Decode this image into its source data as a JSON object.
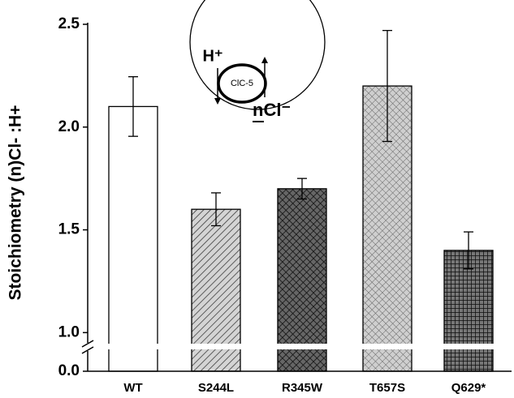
{
  "chart_data": {
    "type": "bar",
    "y_label": "Stoichiometry (n)Cl- :H+",
    "categories": [
      "WT",
      "S244L",
      "R345W",
      "T657S",
      "Q629*"
    ],
    "values": [
      2.1,
      1.6,
      1.7,
      2.2,
      1.4
    ],
    "errors": [
      0.145,
      0.08,
      0.05,
      0.27,
      0.09
    ],
    "patterns": [
      "none",
      "diagonal",
      "crosshatch-dark",
      "crosshatch-light",
      "grid-dark"
    ],
    "ylim": [
      0,
      2.5
    ],
    "ybreak": [
      0.1,
      0.95
    ],
    "yticks": [
      {
        "value": 0,
        "label": "0.0"
      },
      {
        "value": 1,
        "label": "1.0"
      },
      1.5,
      {
        "value": 2,
        "label": "2.0"
      },
      2.5
    ],
    "inset": {
      "proton": "H⁺",
      "channel": "ClC-5",
      "chloride": "nCl⁻"
    }
  }
}
